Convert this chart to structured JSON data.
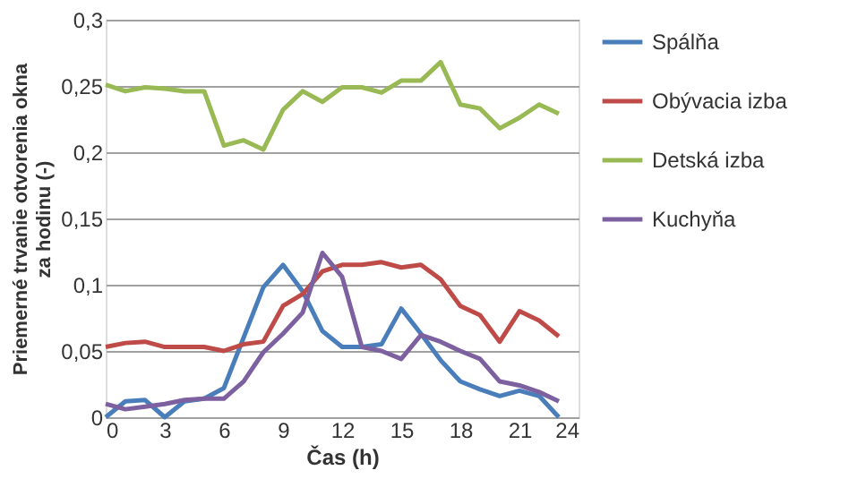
{
  "chart_data": {
    "type": "line",
    "xlabel": "Čas (h)",
    "ylabel": "Priemerné trvanie otvorenia okna\nza hodinu (-)",
    "x": [
      0,
      1,
      2,
      3,
      4,
      5,
      6,
      7,
      8,
      9,
      10,
      11,
      12,
      13,
      14,
      15,
      16,
      17,
      18,
      19,
      20,
      21,
      22,
      23
    ],
    "series": [
      {
        "name": "Spálňa",
        "color": "#4a7ebb",
        "values": [
          0,
          0.012,
          0.013,
          0,
          0.012,
          0.014,
          0.022,
          0.06,
          0.098,
          0.115,
          0.095,
          0.065,
          0.053,
          0.053,
          0.055,
          0.082,
          0.063,
          0.043,
          0.027,
          0.021,
          0.016,
          0.02,
          0.016,
          0
        ]
      },
      {
        "name": "Obývacia izba",
        "color": "#be4b48",
        "values": [
          0.053,
          0.056,
          0.057,
          0.053,
          0.053,
          0.053,
          0.05,
          0.055,
          0.057,
          0.084,
          0.093,
          0.11,
          0.115,
          0.115,
          0.117,
          0.113,
          0.115,
          0.104,
          0.084,
          0.077,
          0.057,
          0.08,
          0.073,
          0.061
        ]
      },
      {
        "name": "Detská izba",
        "color": "#98b954",
        "values": [
          0.251,
          0.246,
          0.249,
          0.248,
          0.246,
          0.246,
          0.205,
          0.209,
          0.202,
          0.232,
          0.246,
          0.238,
          0.249,
          0.249,
          0.245,
          0.254,
          0.254,
          0.268,
          0.236,
          0.233,
          0.218,
          0.226,
          0.236,
          0.229
        ]
      },
      {
        "name": "Kuchyňa",
        "color": "#7d60a0",
        "values": [
          0.01,
          0.006,
          0.008,
          0.01,
          0.013,
          0.014,
          0.014,
          0.027,
          0.049,
          0.063,
          0.079,
          0.124,
          0.106,
          0.053,
          0.05,
          0.044,
          0.062,
          0.057,
          0.05,
          0.044,
          0.027,
          0.024,
          0.019,
          0.012
        ]
      }
    ],
    "xlim": [
      0,
      24
    ],
    "xticks": [
      0,
      3,
      6,
      9,
      12,
      15,
      18,
      21,
      24
    ],
    "ylim": [
      0,
      0.3
    ],
    "yticks": [
      0,
      {
        "value": 0.05,
        "label": "0,05"
      },
      {
        "value": 0.1,
        "label": "0,1"
      },
      {
        "value": 0.15,
        "label": "0,15"
      },
      {
        "value": 0.2,
        "label": "0,2"
      },
      {
        "value": 0.25,
        "label": "0,25"
      },
      {
        "value": 0.3,
        "label": "0,3"
      }
    ],
    "grid": "y",
    "legend": "right",
    "marker": "none",
    "line_style": "solid"
  }
}
